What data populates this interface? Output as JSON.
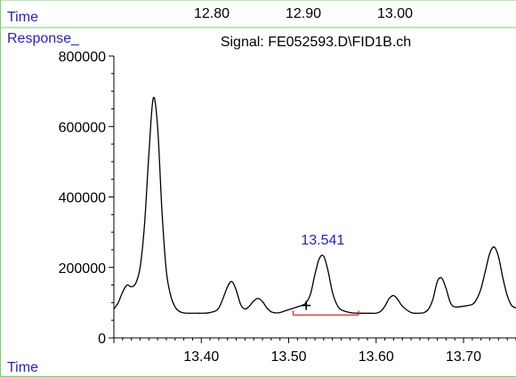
{
  "chart_data": {
    "type": "line",
    "title": "Signal: FE052593.D\\FID1B.ch",
    "ylabel": "Response_",
    "xlabel": "Time",
    "top_axis_label": "Time",
    "top_axis_ticks": [
      "12.80",
      "12.90",
      "13.00"
    ],
    "x_ticks": [
      "13.40",
      "13.50",
      "13.60",
      "13.70"
    ],
    "y_ticks": [
      "800000",
      "600000",
      "400000",
      "200000",
      "0"
    ],
    "xlim": [
      13.3,
      13.76
    ],
    "ylim": [
      0,
      800000
    ],
    "peak_annotation": {
      "label": "13.541",
      "x": 13.541,
      "y": 232000
    },
    "integration_baseline": {
      "x_start": 13.505,
      "x_end": 13.58,
      "y": 65000
    },
    "marker": {
      "x": 13.52,
      "y": 92000
    },
    "series": [
      {
        "x": [
          13.3,
          13.305,
          13.31,
          13.315,
          13.32,
          13.325,
          13.33,
          13.335,
          13.34,
          13.345,
          13.35,
          13.355,
          13.36,
          13.365,
          13.37,
          13.375,
          13.38,
          13.385,
          13.39,
          13.395,
          13.4,
          13.41,
          13.42,
          13.43,
          13.435,
          13.44,
          13.445,
          13.45,
          13.455,
          13.46,
          13.465,
          13.47,
          13.475,
          13.48,
          13.485,
          13.49,
          13.495,
          13.5,
          13.505,
          13.51,
          13.515,
          13.52,
          13.525,
          13.53,
          13.535,
          13.54,
          13.545,
          13.55,
          13.555,
          13.56,
          13.57,
          13.58,
          13.59,
          13.6,
          13.605,
          13.61,
          13.615,
          13.62,
          13.625,
          13.63,
          13.64,
          13.65,
          13.655,
          13.66,
          13.665,
          13.67,
          13.675,
          13.68,
          13.685,
          13.69,
          13.7,
          13.71,
          13.715,
          13.72,
          13.725,
          13.73,
          13.735,
          13.74,
          13.745,
          13.75,
          13.755,
          13.76
        ],
        "y": [
          82000,
          100000,
          130000,
          150000,
          145000,
          155000,
          200000,
          320000,
          520000,
          680000,
          600000,
          360000,
          190000,
          120000,
          88000,
          75000,
          71000,
          70000,
          70000,
          70000,
          70000,
          72000,
          85000,
          145000,
          160000,
          135000,
          95000,
          82000,
          90000,
          105000,
          112000,
          103000,
          85000,
          74000,
          71000,
          72000,
          76000,
          80000,
          84000,
          88000,
          92000,
          100000,
          125000,
          180000,
          225000,
          232000,
          190000,
          130000,
          95000,
          80000,
          72000,
          70000,
          70000,
          70000,
          75000,
          90000,
          112000,
          120000,
          108000,
          90000,
          72000,
          70000,
          72000,
          82000,
          110000,
          160000,
          170000,
          140000,
          100000,
          88000,
          90000,
          95000,
          110000,
          140000,
          190000,
          240000,
          258000,
          230000,
          170000,
          120000,
          92000,
          85000
        ]
      }
    ]
  }
}
